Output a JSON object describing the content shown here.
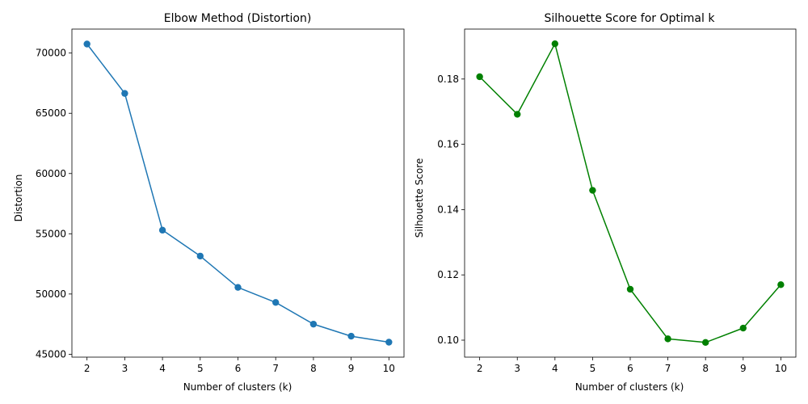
{
  "chart_data": [
    {
      "type": "line",
      "title": "Elbow Method (Distortion)",
      "xlabel": "Number of clusters (k)",
      "ylabel": "Distortion",
      "color": "#1f77b4",
      "marker": "circle",
      "x": [
        2,
        3,
        4,
        5,
        6,
        7,
        8,
        9,
        10
      ],
      "y": [
        70750,
        66650,
        55300,
        53150,
        50550,
        49300,
        47500,
        46500,
        46000
      ],
      "xticks": [
        "2",
        "3",
        "4",
        "5",
        "6",
        "7",
        "8",
        "9",
        "10"
      ],
      "yticks": [
        "45000",
        "50000",
        "55000",
        "60000",
        "65000",
        "70000"
      ],
      "xlim": [
        1.6,
        10.4
      ],
      "ylim": [
        44760,
        71990
      ],
      "grid": false
    },
    {
      "type": "line",
      "title": "Silhouette Score for Optimal k",
      "xlabel": "Number of clusters (k)",
      "ylabel": "Silhouette Score",
      "color": "#008000",
      "marker": "circle",
      "x": [
        2,
        3,
        4,
        5,
        6,
        7,
        8,
        9,
        10
      ],
      "y": [
        0.1807,
        0.1692,
        0.1908,
        0.1459,
        0.1156,
        0.1004,
        0.0993,
        0.1037,
        0.117
      ],
      "xticks": [
        "2",
        "3",
        "4",
        "5",
        "6",
        "7",
        "8",
        "9",
        "10"
      ],
      "yticks": [
        "0.10",
        "0.12",
        "0.14",
        "0.16",
        "0.18"
      ],
      "xlim": [
        1.6,
        10.4
      ],
      "ylim": [
        0.0948,
        0.1953
      ],
      "grid": false
    }
  ]
}
